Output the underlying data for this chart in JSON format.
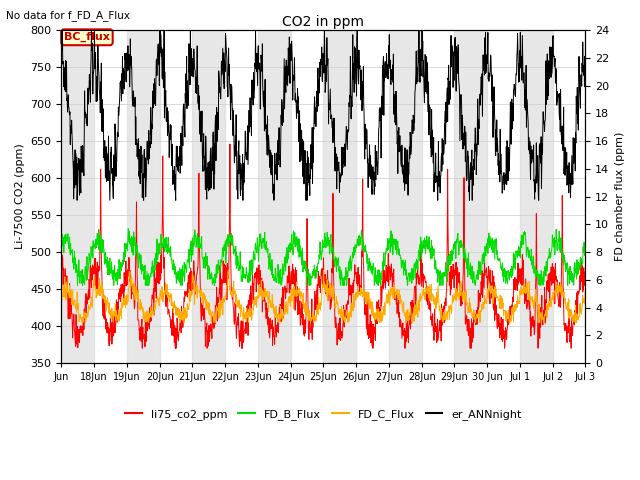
{
  "title": "CO2 in ppm",
  "title_note": "No data for f_FD_A_Flux",
  "ylabel_left": "Li-7500 CO2 (ppm)",
  "ylabel_right": "FD chamber flux (ppm)",
  "ylim_left": [
    350,
    800
  ],
  "ylim_right": [
    0,
    24
  ],
  "yticks_left": [
    350,
    400,
    450,
    500,
    550,
    600,
    650,
    700,
    750,
    800
  ],
  "yticks_right": [
    0,
    2,
    4,
    6,
    8,
    10,
    12,
    14,
    16,
    18,
    20,
    22,
    24
  ],
  "bc_flux_label": "BC_flux",
  "legend_entries": [
    "li75_co2_ppm",
    "FD_B_Flux",
    "FD_C_Flux",
    "er_ANNnight"
  ],
  "legend_colors": [
    "#ff0000",
    "#00dd00",
    "#ffaa00",
    "#000000"
  ],
  "line_li75_color": "#ff0000",
  "line_FD_B_color": "#00dd00",
  "line_FD_C_color": "#ffaa00",
  "line_ANN_color": "#000000",
  "background_color": "#ffffff",
  "shading_color": "#d8d8d8",
  "figsize": [
    6.4,
    4.8
  ],
  "dpi": 100
}
